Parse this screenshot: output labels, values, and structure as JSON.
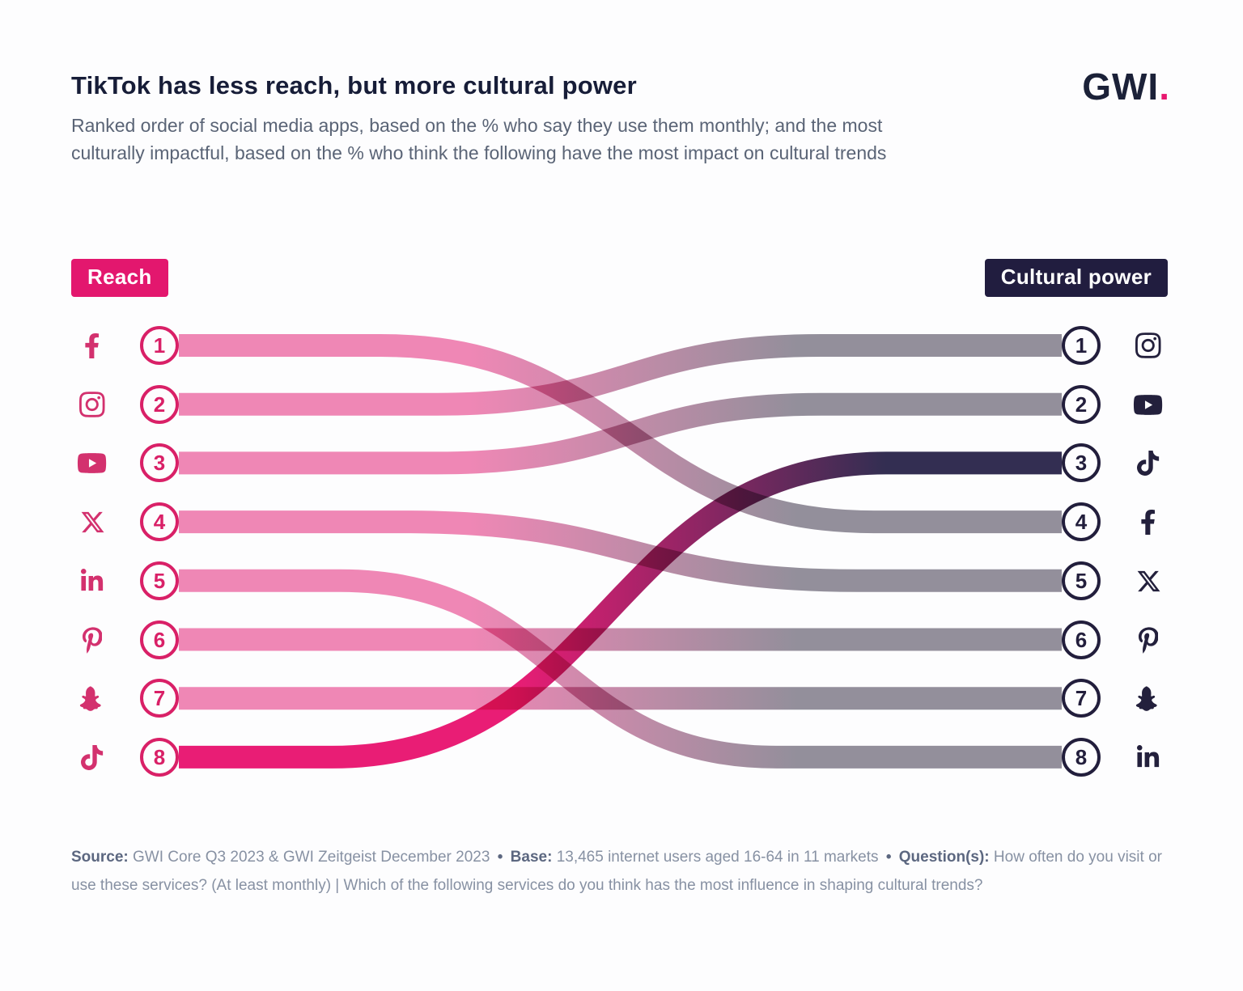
{
  "header": {
    "title": "TikTok has less reach, but more cultural power",
    "subtitle": "Ranked order of social media apps, based on the % who say they use them monthly; and the most culturally impactful, based on the % who think the following have the most impact on cultural trends",
    "logo_text": "GWI",
    "logo_dot": "."
  },
  "labels": {
    "left": "Reach",
    "right": "Cultural power"
  },
  "colors": {
    "accent_pink": "#E3176E",
    "icon_pink": "#D3316E",
    "ribbon_pink": "#EF87B5",
    "ribbon_gray": "#938F9B",
    "tiktok_pink": "#E91D75",
    "dark_navy": "#332E52",
    "badge_navy": "#211D3F",
    "title_navy": "#171D38"
  },
  "chart_data": {
    "type": "bump",
    "title": "TikTok has less reach, but more cultural power",
    "left_axis_label": "Reach",
    "right_axis_label": "Cultural power",
    "rank_range": [
      1,
      8
    ],
    "left_ranking": [
      "Facebook",
      "Instagram",
      "YouTube",
      "X",
      "LinkedIn",
      "Pinterest",
      "Snapchat",
      "TikTok"
    ],
    "right_ranking": [
      "Instagram",
      "YouTube",
      "TikTok",
      "Facebook",
      "X",
      "Pinterest",
      "Snapchat",
      "LinkedIn"
    ],
    "links": [
      {
        "app": "Facebook",
        "icon": "facebook-icon",
        "reach_rank": 1,
        "cultural_rank": 4,
        "highlight": false
      },
      {
        "app": "Instagram",
        "icon": "instagram-icon",
        "reach_rank": 2,
        "cultural_rank": 1,
        "highlight": false
      },
      {
        "app": "YouTube",
        "icon": "youtube-icon",
        "reach_rank": 3,
        "cultural_rank": 2,
        "highlight": false
      },
      {
        "app": "X",
        "icon": "x-icon",
        "reach_rank": 4,
        "cultural_rank": 5,
        "highlight": false
      },
      {
        "app": "LinkedIn",
        "icon": "linkedin-icon",
        "reach_rank": 5,
        "cultural_rank": 8,
        "highlight": false
      },
      {
        "app": "Pinterest",
        "icon": "pinterest-icon",
        "reach_rank": 6,
        "cultural_rank": 6,
        "highlight": false
      },
      {
        "app": "Snapchat",
        "icon": "snapchat-icon",
        "reach_rank": 7,
        "cultural_rank": 7,
        "highlight": false
      },
      {
        "app": "TikTok",
        "icon": "tiktok-icon",
        "reach_rank": 8,
        "cultural_rank": 3,
        "highlight": true
      }
    ],
    "left_rows": [
      {
        "rank": "1",
        "app": "Facebook"
      },
      {
        "rank": "2",
        "app": "Instagram"
      },
      {
        "rank": "3",
        "app": "YouTube"
      },
      {
        "rank": "4",
        "app": "X"
      },
      {
        "rank": "5",
        "app": "LinkedIn"
      },
      {
        "rank": "6",
        "app": "Pinterest"
      },
      {
        "rank": "7",
        "app": "Snapchat"
      },
      {
        "rank": "8",
        "app": "TikTok"
      }
    ],
    "right_rows": [
      {
        "rank": "1",
        "app": "Instagram"
      },
      {
        "rank": "2",
        "app": "YouTube"
      },
      {
        "rank": "3",
        "app": "TikTok"
      },
      {
        "rank": "4",
        "app": "Facebook"
      },
      {
        "rank": "5",
        "app": "X"
      },
      {
        "rank": "6",
        "app": "Pinterest"
      },
      {
        "rank": "7",
        "app": "Snapchat"
      },
      {
        "rank": "8",
        "app": "LinkedIn"
      }
    ]
  },
  "footer": {
    "source_label": "Source:",
    "source_text": "GWI Core Q3 2023 & GWI Zeitgeist December 2023",
    "bullet": "•",
    "base_label": "Base:",
    "base_text": "13,465 internet users aged 16-64 in 11 markets",
    "question_label": "Question(s):",
    "question_text": "How often do you visit or use these services? (At least monthly) | Which of the following services do you think has the most influence in shaping cultural trends?"
  }
}
